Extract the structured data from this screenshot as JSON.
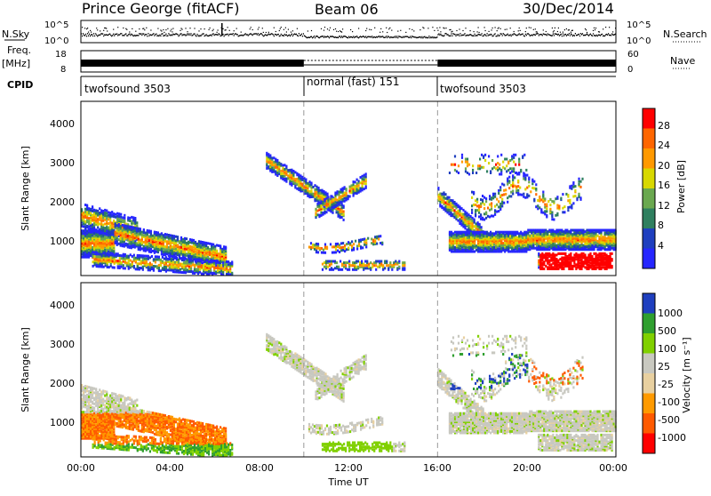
{
  "header": {
    "station": "Prince George (fitACF)",
    "beam": "Beam 06",
    "date": "30/Dec/2014"
  },
  "left_labels": {
    "nsky": "N.Sky",
    "freq": "Freq.",
    "mhz": "[MHz]",
    "cpid": "CPID"
  },
  "right_labels": {
    "nsearch": "N.Search",
    "nave": "Nave"
  },
  "nsky_axis": {
    "top": "10^5",
    "bottom": "10^0"
  },
  "nsearch_axis": {
    "top": "10^5",
    "bottom": "10^0"
  },
  "freq_axis": {
    "top": "18",
    "bottom": "8"
  },
  "nave_axis": {
    "top": "60",
    "bottom": "0"
  },
  "cpid_segments": [
    {
      "label": "twofsound 3503",
      "start": 0,
      "end": 10
    },
    {
      "label": "normal (fast) 151",
      "start": 10,
      "end": 16
    },
    {
      "label": "twofsound 3503",
      "start": 16,
      "end": 24
    }
  ],
  "colors": {
    "power": [
      "#2626ff",
      "#1f3fbf",
      "#2f7f5f",
      "#6aa84f",
      "#d8d800",
      "#ff9900",
      "#ff6600",
      "#ff0000"
    ],
    "velocity": [
      "#ff0000",
      "#ff5a00",
      "#ff9a00",
      "#e8d0a0",
      "#c8c8c0",
      "#80d000",
      "#2f9f2f",
      "#1f3fbf"
    ]
  },
  "chart_data": [
    {
      "type": "heatmap",
      "name": "power",
      "ylabel": "Slant Range [km]",
      "yticks": [
        "1000",
        "2000",
        "3000",
        "4000"
      ],
      "ylim": [
        180,
        4600
      ],
      "xlim": [
        0,
        24
      ],
      "colorbar_label": "Power [dB]",
      "colorbar_ticks": [
        "4",
        "8",
        "12",
        "16",
        "20",
        "24",
        "28"
      ],
      "vlines": [
        10,
        16
      ]
    },
    {
      "type": "heatmap",
      "name": "velocity",
      "ylabel": "Slant Range [km]",
      "yticks": [
        "1000",
        "2000",
        "3000",
        "4000"
      ],
      "ylim": [
        180,
        4600
      ],
      "xlim": [
        0,
        24
      ],
      "colorbar_label": "Velocity [m s⁻¹]",
      "colorbar_ticks": [
        "1000",
        "500",
        "100",
        "25",
        "-25",
        "-100",
        "-500",
        "-1000"
      ],
      "vlines": [
        10,
        16
      ]
    }
  ],
  "xaxis": {
    "label": "Time UT",
    "ticks": [
      "00:00",
      "04:00",
      "08:00",
      "12:00",
      "16:00",
      "20:00",
      "00:00"
    ]
  }
}
